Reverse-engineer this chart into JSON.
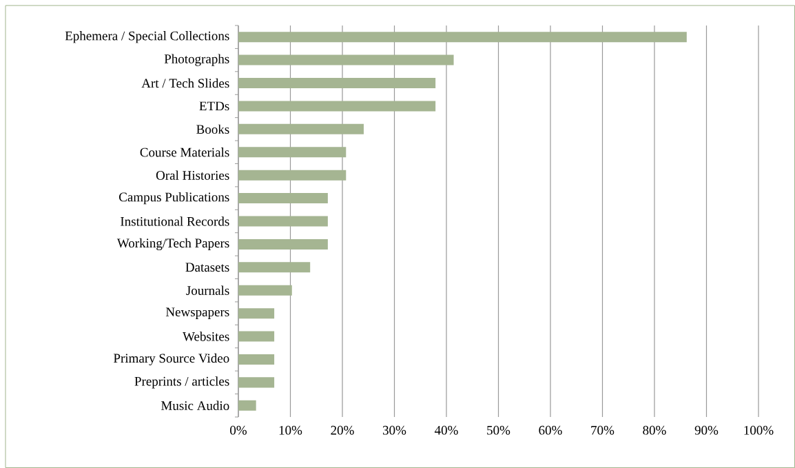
{
  "chart_data": {
    "type": "bar",
    "orientation": "horizontal",
    "categories": [
      "Ephemera / Special Collections",
      "Photographs",
      "Art / Tech Slides",
      "ETDs",
      "Books",
      "Course Materials",
      "Oral Histories",
      "Campus Publications",
      "Institutional Records",
      "Working/Tech Papers",
      "Datasets",
      "Journals",
      "Newspapers",
      "Websites",
      "Primary Source Video",
      "Preprints / articles",
      "Music Audio"
    ],
    "values": [
      86.2,
      41.4,
      37.9,
      37.9,
      24.1,
      20.7,
      20.7,
      17.2,
      17.2,
      17.2,
      13.8,
      10.3,
      6.9,
      6.9,
      6.9,
      6.9,
      3.4
    ],
    "color": "#a5b592",
    "xlim": [
      0,
      100
    ],
    "xticks": [
      {
        "value": 0,
        "label": "0%"
      },
      {
        "value": 10,
        "label": "10%"
      },
      {
        "value": 20,
        "label": "20%"
      },
      {
        "value": 30,
        "label": "30%"
      },
      {
        "value": 40,
        "label": "40%"
      },
      {
        "value": 50,
        "label": "50%"
      },
      {
        "value": 60,
        "label": "60%"
      },
      {
        "value": 70,
        "label": "70%"
      },
      {
        "value": 80,
        "label": "80%"
      },
      {
        "value": 90,
        "label": "90%"
      },
      {
        "value": 100,
        "label": "100%"
      }
    ],
    "grid": "x"
  }
}
